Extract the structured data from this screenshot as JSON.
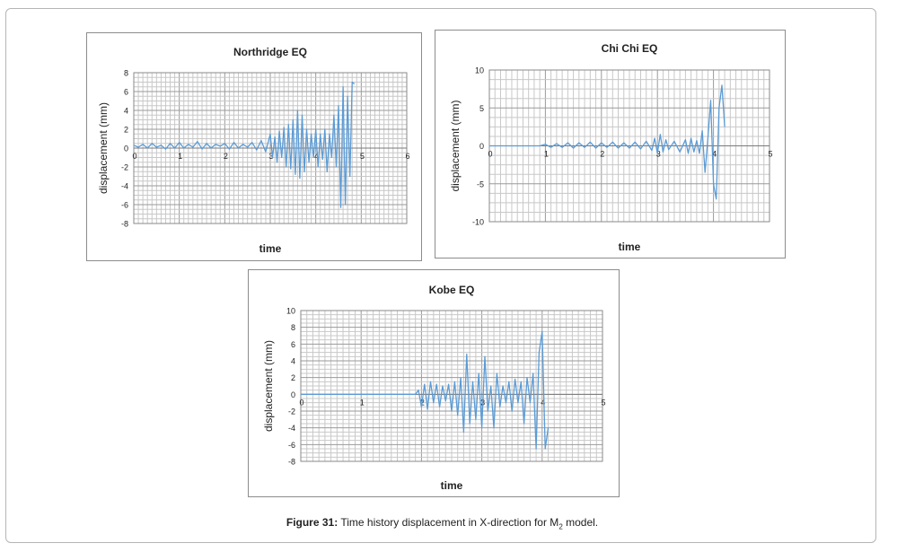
{
  "chart_data": [
    {
      "type": "line",
      "title": "Northridge EQ",
      "xlabel": "time",
      "ylabel": "displacement (mm)",
      "xlim": [
        0,
        6
      ],
      "ylim": [
        -8,
        8
      ],
      "xticks": [
        0,
        1,
        2,
        3,
        4,
        5,
        6
      ],
      "yticks": [
        8,
        6,
        4,
        2,
        0,
        -2,
        -4,
        -6,
        -8
      ],
      "xtick_labels": [
        "0",
        "1",
        "2",
        "3",
        "4",
        "5",
        "6"
      ],
      "ytick_labels": [
        "8",
        "6",
        "4",
        "2",
        "0",
        "-2",
        "-4",
        "-6",
        "-8"
      ],
      "grid": true,
      "line_color": "#5b9bd5",
      "series": [
        {
          "x": [
            0,
            0.1,
            0.2,
            0.3,
            0.4,
            0.5,
            0.6,
            0.7,
            0.8,
            0.9,
            1.0,
            1.1,
            1.2,
            1.3,
            1.4,
            1.5,
            1.6,
            1.7,
            1.8,
            1.9,
            2.0,
            2.1,
            2.2,
            2.3,
            2.4,
            2.5,
            2.6,
            2.7,
            2.8,
            2.9,
            3.0,
            3.05,
            3.1,
            3.15,
            3.2,
            3.25,
            3.3,
            3.35,
            3.4,
            3.45,
            3.5,
            3.55,
            3.6,
            3.65,
            3.7,
            3.75,
            3.8,
            3.85,
            3.9,
            3.95,
            4.0,
            4.05,
            4.1,
            4.15,
            4.2,
            4.25,
            4.3,
            4.35,
            4.4,
            4.45,
            4.5,
            4.55,
            4.6,
            4.65,
            4.7,
            4.75,
            4.8,
            4.85
          ],
          "y": [
            0.3,
            0.1,
            0.4,
            0.0,
            0.5,
            0.1,
            0.3,
            -0.1,
            0.5,
            0.0,
            0.6,
            0.0,
            0.4,
            0.1,
            0.7,
            -0.1,
            0.5,
            0.0,
            0.4,
            0.2,
            0.5,
            -0.1,
            0.6,
            0.0,
            0.4,
            0.1,
            0.6,
            -0.2,
            0.8,
            -0.4,
            1.5,
            -1.0,
            1.2,
            -1.5,
            1.8,
            -1.0,
            2.2,
            -2.0,
            2.5,
            -2.2,
            3.0,
            -2.8,
            4.0,
            -3.2,
            3.5,
            -2.5,
            2.0,
            -1.5,
            1.5,
            -1.0,
            2.0,
            -2.0,
            1.5,
            -1.2,
            2.0,
            -2.5,
            1.5,
            -1.0,
            3.5,
            -2.0,
            4.5,
            -6.3,
            6.5,
            -6.0,
            5.5,
            -3.0,
            7.0,
            6.8
          ]
        }
      ]
    },
    {
      "type": "line",
      "title": "Chi Chi EQ",
      "xlabel": "time",
      "ylabel": "displacement (mm)",
      "xlim": [
        0,
        5
      ],
      "ylim": [
        -10,
        10
      ],
      "xticks": [
        0,
        1,
        2,
        3,
        4,
        5
      ],
      "yticks": [
        10,
        5,
        0,
        -5,
        -10
      ],
      "xtick_labels": [
        "0",
        "1",
        "2",
        "3",
        "4",
        "5"
      ],
      "ytick_labels": [
        "10",
        "5",
        "0",
        "-5",
        "-10"
      ],
      "grid": true,
      "line_color": "#5b9bd5",
      "series": [
        {
          "x": [
            0,
            0.5,
            0.9,
            1.0,
            1.1,
            1.2,
            1.3,
            1.4,
            1.5,
            1.6,
            1.7,
            1.8,
            1.9,
            2.0,
            2.1,
            2.2,
            2.3,
            2.4,
            2.5,
            2.6,
            2.7,
            2.8,
            2.9,
            2.95,
            3.0,
            3.05,
            3.1,
            3.15,
            3.2,
            3.3,
            3.4,
            3.5,
            3.55,
            3.6,
            3.65,
            3.7,
            3.75,
            3.8,
            3.85,
            3.9,
            3.95,
            4.0,
            4.05,
            4.1,
            4.15,
            4.2
          ],
          "y": [
            0,
            0,
            0,
            0.2,
            -0.2,
            0.3,
            -0.2,
            0.4,
            -0.3,
            0.4,
            -0.2,
            0.5,
            -0.3,
            0.4,
            -0.2,
            0.5,
            -0.3,
            0.4,
            -0.3,
            0.5,
            -0.4,
            0.6,
            -0.6,
            1.0,
            -1.0,
            1.5,
            -0.8,
            0.8,
            -0.5,
            0.6,
            -0.8,
            0.8,
            -1.0,
            1.0,
            -0.8,
            0.7,
            -1.0,
            2.0,
            -3.5,
            1.0,
            6.0,
            -5.0,
            -7.0,
            5.0,
            8.0,
            2.5
          ]
        }
      ]
    },
    {
      "type": "line",
      "title": "Kobe EQ",
      "xlabel": "time",
      "ylabel": "displacement (mm)",
      "xlim": [
        0,
        5
      ],
      "ylim": [
        -8,
        10
      ],
      "xticks": [
        0,
        1,
        2,
        3,
        4,
        5
      ],
      "yticks": [
        10,
        8,
        6,
        4,
        2,
        0,
        -2,
        -4,
        -6,
        -8
      ],
      "xtick_labels": [
        "0",
        "1",
        "2",
        "3",
        "4",
        "5"
      ],
      "ytick_labels": [
        "10",
        "8",
        "6",
        "4",
        "2",
        "0",
        "-2",
        "-4",
        "-6",
        "-8"
      ],
      "grid": true,
      "line_color": "#5b9bd5",
      "series": [
        {
          "x": [
            0,
            1.0,
            1.9,
            1.95,
            2.0,
            2.05,
            2.1,
            2.15,
            2.2,
            2.25,
            2.3,
            2.35,
            2.4,
            2.45,
            2.5,
            2.55,
            2.6,
            2.65,
            2.7,
            2.75,
            2.8,
            2.85,
            2.9,
            2.95,
            3.0,
            3.05,
            3.1,
            3.15,
            3.2,
            3.25,
            3.3,
            3.35,
            3.4,
            3.45,
            3.5,
            3.55,
            3.6,
            3.65,
            3.7,
            3.75,
            3.8,
            3.85,
            3.9,
            3.95,
            4.0,
            4.05,
            4.1
          ],
          "y": [
            0,
            0,
            0,
            0.5,
            -1.5,
            1.2,
            -1.8,
            1.5,
            -1.0,
            1.2,
            -1.5,
            1.0,
            -0.8,
            1.2,
            -2.0,
            1.5,
            -2.5,
            2.0,
            -4.5,
            4.8,
            -3.5,
            1.5,
            -3.0,
            2.5,
            -4.0,
            4.5,
            -2.0,
            1.0,
            -4.0,
            2.5,
            -1.5,
            1.0,
            -1.0,
            1.5,
            -2.0,
            1.8,
            -1.0,
            1.5,
            -3.5,
            2.0,
            -1.0,
            2.5,
            -6.5,
            5.0,
            7.5,
            -6.5,
            -4.0
          ]
        }
      ]
    }
  ],
  "caption": {
    "label": "Figure 31:",
    "text_before": " Time history displacement in X-direction for M",
    "subscript": "2",
    "text_after": " model."
  }
}
